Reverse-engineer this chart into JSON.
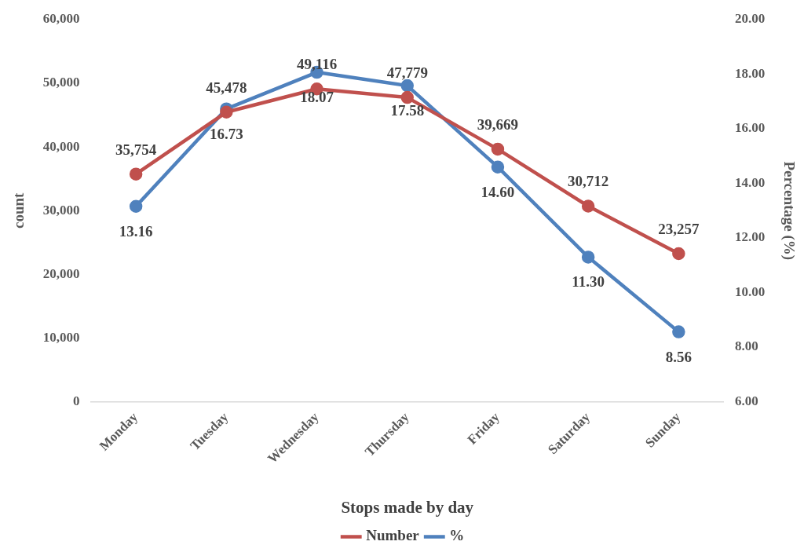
{
  "chart_data": {
    "type": "line",
    "xlabel": "Stops made by day",
    "ylabel": "count",
    "y2label": "Percentage (%)",
    "categories": [
      "Monday",
      "Tuesday",
      "Wednesday",
      "Thursday",
      "Friday",
      "Saturday",
      "Sunday"
    ],
    "series": [
      {
        "name": "Number",
        "color": "#c0504d",
        "values": [
          35754,
          45478,
          49116,
          47779,
          39669,
          30712,
          23257
        ],
        "value_labels": [
          "35,754",
          "45,478",
          "49,116",
          "47,779",
          "39,669",
          "30,712",
          "23,257"
        ]
      },
      {
        "name": "%",
        "color": "#4f81bd",
        "axis": "y2",
        "values": [
          13.16,
          16.73,
          18.07,
          17.58,
          14.6,
          11.3,
          8.56
        ],
        "value_labels": [
          "13.16",
          "16.73",
          "18.07",
          "17.58",
          "14.60",
          "11.30",
          "8.56"
        ]
      }
    ],
    "ylim": [
      0,
      60000
    ],
    "yticks": [
      {
        "value": 0,
        "label": "0"
      },
      {
        "value": 10000,
        "label": "10,000"
      },
      {
        "value": 20000,
        "label": "20,000"
      },
      {
        "value": 30000,
        "label": "30,000"
      },
      {
        "value": 40000,
        "label": "40,000"
      },
      {
        "value": 50000,
        "label": "50,000"
      },
      {
        "value": 60000,
        "label": "60,000"
      }
    ],
    "y2lim": [
      6,
      20
    ],
    "y2ticks": [
      {
        "value": 6,
        "label": "6.00"
      },
      {
        "value": 8,
        "label": "8.00"
      },
      {
        "value": 10,
        "label": "10.00"
      },
      {
        "value": 12,
        "label": "12.00"
      },
      {
        "value": 14,
        "label": "14.00"
      },
      {
        "value": 16,
        "label": "16.00"
      },
      {
        "value": 18,
        "label": "18.00"
      },
      {
        "value": 20,
        "label": "20.00"
      }
    ],
    "grid": false,
    "legend": "bottom",
    "marker": "circle",
    "line_style": "solid"
  }
}
